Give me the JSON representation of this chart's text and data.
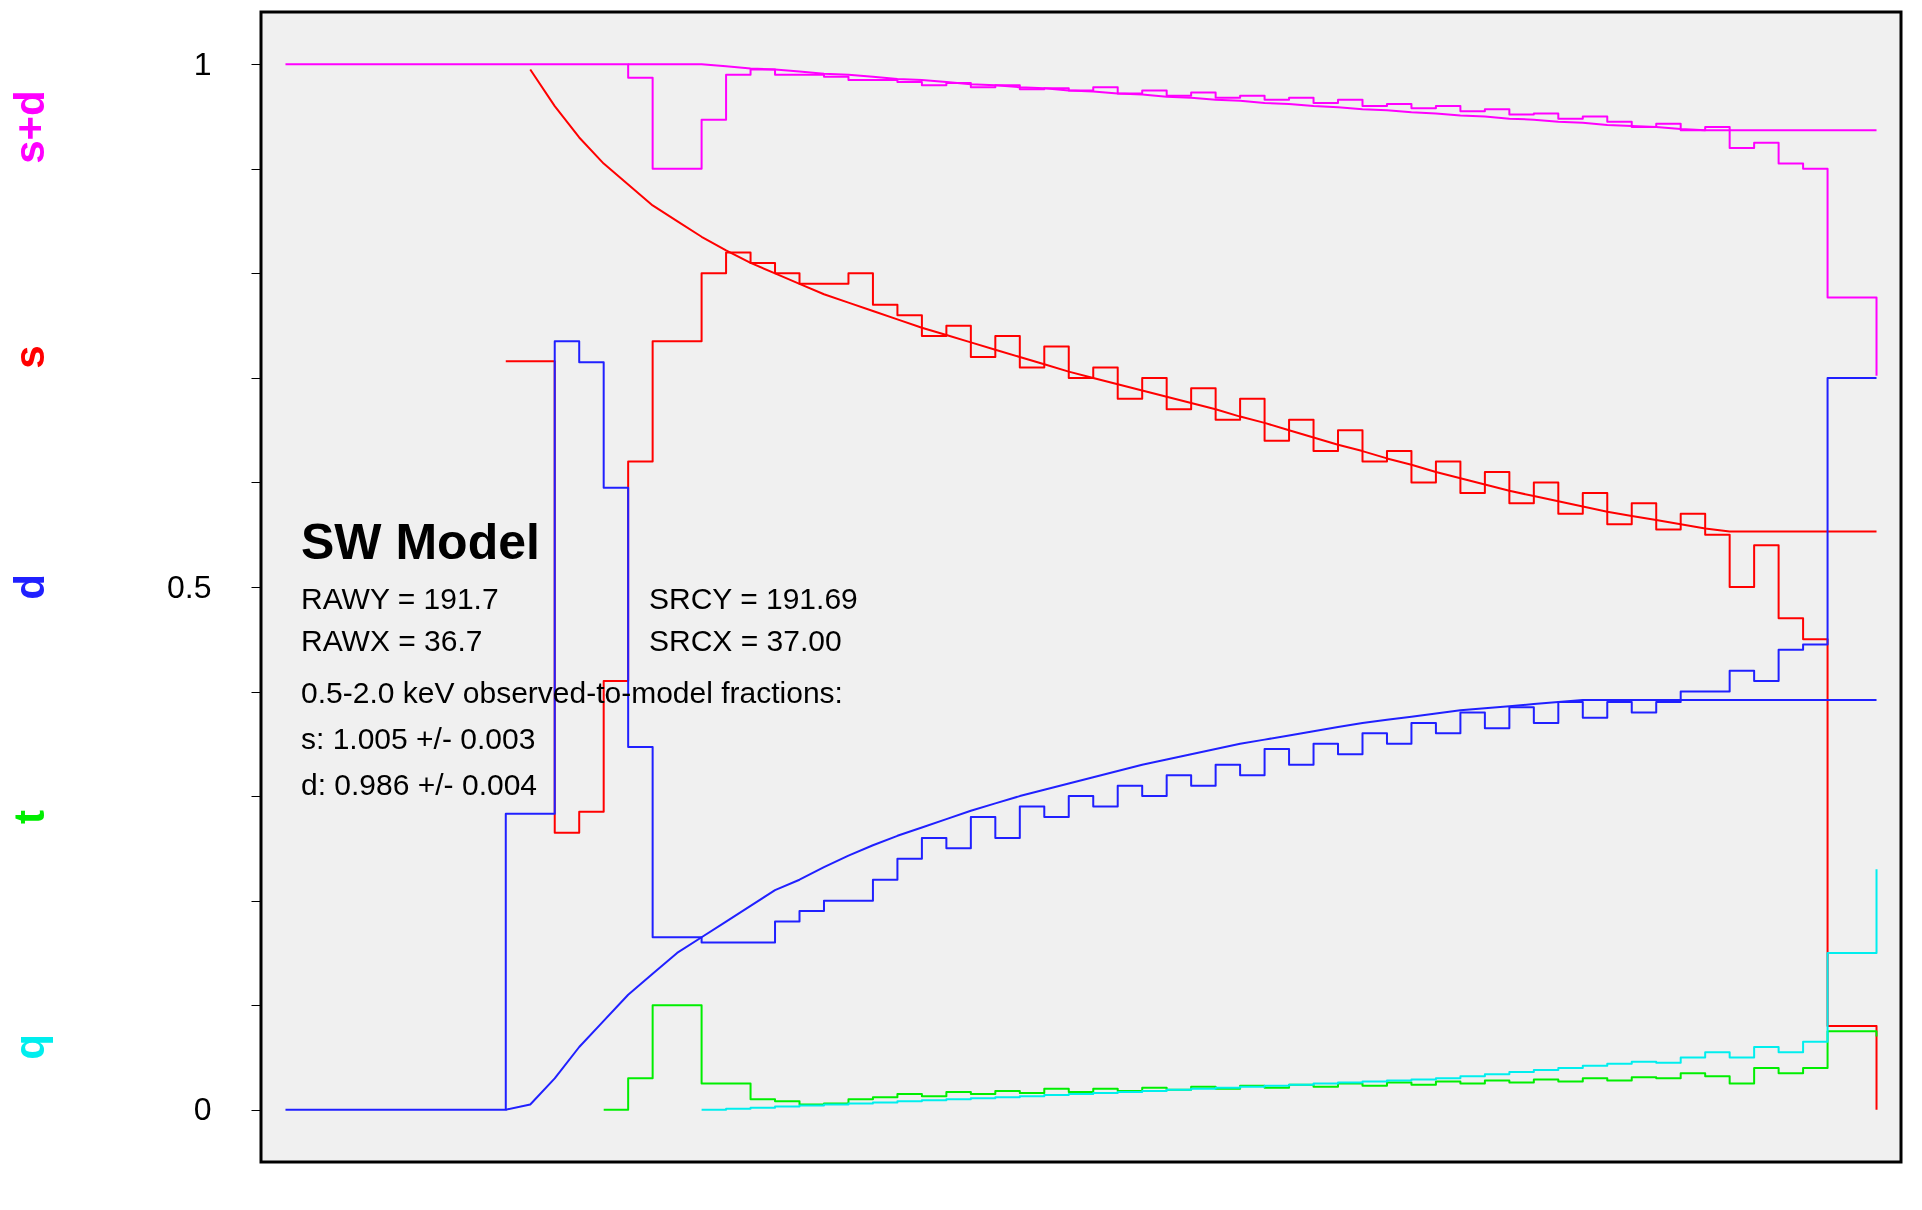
{
  "chart_data": {
    "type": "step",
    "categories": [
      null,
      null,
      null,
      null,
      null,
      null,
      null,
      null,
      null,
      null,
      null,
      null,
      null,
      null,
      null,
      null,
      null,
      null,
      null,
      null,
      null,
      null,
      null,
      null,
      null,
      null,
      null,
      null,
      null,
      null,
      null,
      null,
      null,
      null,
      null,
      null,
      null,
      null,
      null,
      null,
      null,
      null,
      null,
      null,
      null,
      null,
      null,
      null,
      null,
      null,
      null,
      null,
      null,
      null,
      null,
      null,
      null,
      null,
      null,
      null,
      null,
      null,
      null,
      null,
      null,
      null
    ],
    "series": [
      {
        "name": "s+d",
        "color": "#ff00ff",
        "values": [
          1,
          1,
          1,
          1,
          1,
          1,
          1,
          1,
          1,
          1,
          1,
          1,
          1,
          1,
          0.987,
          0.9,
          0.9,
          0.947,
          0.99,
          0.995,
          0.99,
          0.99,
          0.988,
          0.985,
          0.985,
          0.983,
          0.98,
          0.982,
          0.978,
          0.98,
          0.976,
          0.977,
          0.975,
          0.978,
          0.972,
          0.975,
          0.97,
          0.973,
          0.968,
          0.97,
          0.966,
          0.968,
          0.963,
          0.966,
          0.96,
          0.962,
          0.958,
          0.96,
          0.955,
          0.957,
          0.952,
          0.953,
          0.948,
          0.95,
          0.945,
          0.94,
          0.943,
          0.937,
          0.94,
          0.92,
          0.925,
          0.905,
          0.9,
          0.777,
          0.777,
          0.702
        ]
      },
      {
        "type": "line",
        "color": "#ff00ff",
        "values": [
          null,
          null,
          null,
          null,
          null,
          null,
          null,
          null,
          null,
          null,
          null,
          null,
          null,
          null,
          1,
          1,
          1,
          1,
          0.998,
          0.996,
          0.995,
          0.993,
          0.991,
          0.99,
          0.988,
          0.986,
          0.985,
          0.983,
          0.981,
          0.98,
          0.978,
          0.977,
          0.975,
          0.974,
          0.972,
          0.971,
          0.969,
          0.968,
          0.966,
          0.965,
          0.963,
          0.962,
          0.96,
          0.959,
          0.957,
          0.956,
          0.954,
          0.953,
          0.951,
          0.95,
          0.948,
          0.947,
          0.945,
          0.944,
          0.942,
          0.941,
          0.94,
          0.938,
          0.937,
          0.937,
          0.937,
          0.937,
          0.937,
          0.937,
          0.937,
          0.937
        ]
      },
      {
        "name": "s",
        "color": "#ff0000",
        "values": [
          null,
          null,
          null,
          null,
          null,
          null,
          null,
          null,
          null,
          0.716,
          0.716,
          0.265,
          0.285,
          0.41,
          0.62,
          0.735,
          0.735,
          0.8,
          0.82,
          0.81,
          0.8,
          0.79,
          0.79,
          0.8,
          0.77,
          0.76,
          0.74,
          0.75,
          0.72,
          0.74,
          0.71,
          0.73,
          0.7,
          0.71,
          0.68,
          0.7,
          0.67,
          0.69,
          0.66,
          0.68,
          0.64,
          0.66,
          0.63,
          0.65,
          0.62,
          0.63,
          0.6,
          0.62,
          0.59,
          0.61,
          0.58,
          0.6,
          0.57,
          0.59,
          0.56,
          0.58,
          0.555,
          0.57,
          0.55,
          0.5,
          0.54,
          0.47,
          0.45,
          0.08,
          0.08,
          0
        ]
      },
      {
        "type": "line",
        "color": "#ff0000",
        "values": [
          null,
          null,
          null,
          null,
          null,
          null,
          null,
          null,
          null,
          null,
          0.995,
          0.96,
          0.93,
          0.905,
          0.885,
          0.865,
          0.85,
          0.835,
          0.822,
          0.81,
          0.8,
          0.79,
          0.78,
          0.772,
          0.764,
          0.756,
          0.748,
          0.741,
          0.734,
          0.727,
          0.72,
          0.713,
          0.706,
          0.7,
          0.694,
          0.688,
          0.682,
          0.676,
          0.67,
          0.663,
          0.657,
          0.65,
          0.643,
          0.636,
          0.63,
          0.623,
          0.617,
          0.61,
          0.604,
          0.598,
          0.592,
          0.587,
          0.582,
          0.577,
          0.572,
          0.568,
          0.564,
          0.56,
          0.556,
          0.553,
          0.553,
          0.553,
          0.553,
          0.553,
          0.553,
          0.553
        ]
      },
      {
        "name": "d",
        "color": "#2020ff",
        "values": [
          0,
          0,
          0,
          0,
          0,
          0,
          0,
          0,
          0,
          0.283,
          0.283,
          0.735,
          0.715,
          0.595,
          0.347,
          0.165,
          0.165,
          0.16,
          0.16,
          0.16,
          0.18,
          0.19,
          0.2,
          0.2,
          0.22,
          0.24,
          0.26,
          0.25,
          0.28,
          0.26,
          0.29,
          0.28,
          0.3,
          0.29,
          0.31,
          0.3,
          0.32,
          0.31,
          0.33,
          0.32,
          0.345,
          0.33,
          0.35,
          0.34,
          0.36,
          0.35,
          0.37,
          0.36,
          0.38,
          0.365,
          0.385,
          0.37,
          0.39,
          0.375,
          0.39,
          0.38,
          0.39,
          0.4,
          0.4,
          0.42,
          0.41,
          0.44,
          0.445,
          0.7,
          0.7,
          0.7
        ]
      },
      {
        "type": "line",
        "color": "#2020ff",
        "values": [
          null,
          null,
          null,
          null,
          null,
          null,
          null,
          null,
          null,
          0,
          0.005,
          0.03,
          0.06,
          0.085,
          0.11,
          0.13,
          0.15,
          0.165,
          0.18,
          0.195,
          0.21,
          0.22,
          0.232,
          0.243,
          0.253,
          0.262,
          0.27,
          0.278,
          0.286,
          0.293,
          0.3,
          0.306,
          0.312,
          0.318,
          0.324,
          0.33,
          0.335,
          0.34,
          0.345,
          0.35,
          0.354,
          0.358,
          0.362,
          0.366,
          0.37,
          0.373,
          0.376,
          0.379,
          0.382,
          0.384,
          0.386,
          0.388,
          0.39,
          0.392,
          0.392,
          0.392,
          0.392,
          0.392,
          0.392,
          0.392,
          0.392,
          0.392,
          0.392,
          0.392,
          0.392,
          0.392
        ]
      },
      {
        "name": "t",
        "color": "#00ee00",
        "values": [
          null,
          null,
          null,
          null,
          null,
          null,
          null,
          null,
          null,
          null,
          null,
          null,
          null,
          0,
          0.03,
          0.1,
          0.1,
          0.025,
          0.025,
          0.01,
          0.008,
          0.005,
          0.006,
          0.01,
          0.012,
          0.015,
          0.013,
          0.017,
          0.015,
          0.018,
          0.016,
          0.02,
          0.017,
          0.02,
          0.018,
          0.021,
          0.019,
          0.022,
          0.02,
          0.023,
          0.021,
          0.024,
          0.022,
          0.025,
          0.023,
          0.026,
          0.024,
          0.027,
          0.025,
          0.028,
          0.026,
          0.029,
          0.027,
          0.03,
          0.028,
          0.031,
          0.03,
          0.035,
          0.032,
          0.025,
          0.04,
          0.035,
          0.04,
          0.075,
          0.075,
          0.07
        ]
      },
      {
        "name": "q",
        "color": "#00eeee",
        "values": [
          null,
          null,
          null,
          null,
          null,
          null,
          null,
          null,
          null,
          null,
          null,
          null,
          null,
          null,
          null,
          null,
          null,
          0,
          0.001,
          0.002,
          0.003,
          0.004,
          0.005,
          0.006,
          0.007,
          0.008,
          0.009,
          0.01,
          0.011,
          0.012,
          0.013,
          0.014,
          0.015,
          0.016,
          0.017,
          0.018,
          0.019,
          0.02,
          0.021,
          0.022,
          0.023,
          0.024,
          0.025,
          0.026,
          0.027,
          0.028,
          0.029,
          0.03,
          0.032,
          0.034,
          0.036,
          0.038,
          0.04,
          0.042,
          0.044,
          0.046,
          0.045,
          0.05,
          0.055,
          0.05,
          0.06,
          0.055,
          0.065,
          0.15,
          0.15,
          0.23
        ]
      }
    ],
    "ylim": [
      -0.05,
      1.05
    ],
    "yticks": [
      0,
      {
        "value": 0.1,
        "label": null
      },
      {
        "value": 0.2,
        "label": null
      },
      {
        "value": 0.3,
        "label": null
      },
      {
        "value": 0.4,
        "label": null
      },
      0.5,
      {
        "value": 0.6,
        "label": null
      },
      {
        "value": 0.7,
        "label": null
      },
      {
        "value": 0.8,
        "label": null
      },
      {
        "value": 0.9,
        "label": null
      },
      1
    ],
    "tick_labels": "y",
    "annotations": [
      "SW Model",
      "RAWY = 191.7",
      "SRCY = 191.69",
      "RAWX = 36.7",
      "SRCX = 37.00",
      "0.5-2.0 keV observed-to-model fractions:",
      "s: 1.005 +/- 0.003",
      "d: 0.986 +/- 0.004"
    ]
  }
}
